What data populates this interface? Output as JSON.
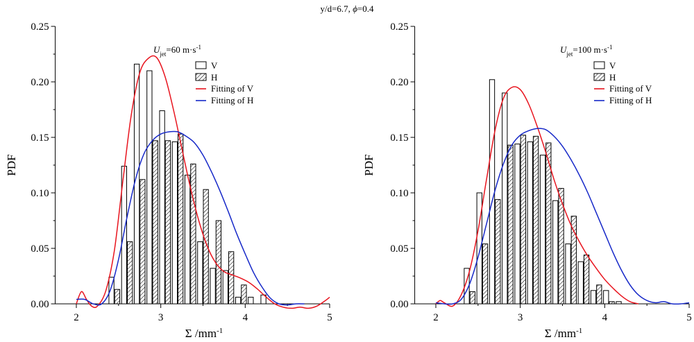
{
  "figure": {
    "suptitle_main": "y/d=6.7, ",
    "suptitle_phi": "ϕ",
    "suptitle_rest": "=0.4"
  },
  "chart_data": [
    {
      "type": "bar",
      "annotation_u": "U",
      "annotation_sub": "jet",
      "annotation_value": "=60 m·s",
      "annotation_sup": "-1",
      "ylabel": "PDF",
      "xlabel_main": "Σ /mm",
      "xlabel_sup": "-1",
      "xlim": [
        1.75,
        5
      ],
      "ylim": [
        0,
        0.25
      ],
      "xticks": [
        "2",
        "3",
        "4",
        "5"
      ],
      "yticks": [
        "0.00",
        "0.05",
        "0.10",
        "0.15",
        "0.20",
        "0.25"
      ],
      "legend": [
        "V",
        "H",
        "Fitting of V",
        "Fitting of H"
      ],
      "colors": {
        "fit_v": "#e8141e",
        "fit_h": "#1628c8"
      },
      "x": [
        2.45,
        2.6,
        2.75,
        2.9,
        3.05,
        3.2,
        3.35,
        3.5,
        3.65,
        3.8,
        3.95,
        4.1,
        4.25,
        4.4
      ],
      "series": [
        {
          "name": "V",
          "values": [
            0.024,
            0.124,
            0.216,
            0.21,
            0.174,
            0.146,
            0.116,
            0.056,
            0.032,
            0.03,
            0.006,
            0.006,
            0.008,
            0.0
          ]
        },
        {
          "name": "H",
          "values": [
            0.013,
            0.056,
            0.112,
            0.147,
            0.147,
            0.153,
            0.126,
            0.103,
            0.075,
            0.047,
            0.017,
            0.0,
            0.0,
            0.0
          ]
        }
      ],
      "fit_v": {
        "name": "Fitting of V",
        "x": [
          2.0,
          2.06,
          2.12,
          2.18,
          2.25,
          2.35,
          2.45,
          2.55,
          2.65,
          2.75,
          2.85,
          2.95,
          3.05,
          3.15,
          3.25,
          3.35,
          3.45,
          3.55,
          3.65,
          3.75,
          3.85,
          3.95,
          4.05,
          4.15,
          4.25,
          4.35,
          4.45,
          4.55,
          4.65,
          4.75,
          4.85,
          4.95,
          5.0
        ],
        "y": [
          0.0,
          0.011,
          0.004,
          -0.002,
          -0.002,
          0.012,
          0.048,
          0.11,
          0.17,
          0.208,
          0.221,
          0.222,
          0.205,
          0.175,
          0.14,
          0.105,
          0.075,
          0.052,
          0.037,
          0.029,
          0.026,
          0.023,
          0.019,
          0.013,
          0.006,
          0.0,
          -0.003,
          -0.004,
          -0.003,
          -0.004,
          -0.002,
          0.003,
          0.006
        ]
      },
      "fit_h": {
        "name": "Fitting of H",
        "x": [
          2.0,
          2.1,
          2.2,
          2.3,
          2.4,
          2.5,
          2.6,
          2.7,
          2.8,
          2.9,
          3.0,
          3.1,
          3.2,
          3.3,
          3.4,
          3.5,
          3.6,
          3.7,
          3.8,
          3.9,
          4.0,
          4.1,
          4.2,
          4.3,
          4.4,
          4.5,
          4.6,
          4.7
        ],
        "y": [
          0.004,
          0.004,
          0.0,
          0.0,
          0.012,
          0.04,
          0.078,
          0.112,
          0.135,
          0.147,
          0.153,
          0.155,
          0.155,
          0.151,
          0.145,
          0.134,
          0.119,
          0.102,
          0.083,
          0.063,
          0.045,
          0.028,
          0.015,
          0.005,
          0.0,
          -0.001,
          0.0,
          0.0
        ]
      }
    },
    {
      "type": "bar",
      "annotation_u": "U",
      "annotation_sub": "jet",
      "annotation_value": "=100 m·s",
      "annotation_sup": "-1",
      "ylabel": "PDF",
      "xlabel_main": "Σ /mm",
      "xlabel_sup": "-1",
      "xlim": [
        1.75,
        5
      ],
      "ylim": [
        0,
        0.25
      ],
      "xticks": [
        "2",
        "3",
        "4",
        "5"
      ],
      "yticks": [
        "0.00",
        "0.05",
        "0.10",
        "0.15",
        "0.20",
        "0.25"
      ],
      "legend": [
        "V",
        "H",
        "Fitting of V",
        "Fitting of H"
      ],
      "colors": {
        "fit_v": "#e8141e",
        "fit_h": "#1628c8"
      },
      "x": [
        2.4,
        2.55,
        2.7,
        2.85,
        3.0,
        3.15,
        3.3,
        3.45,
        3.6,
        3.75,
        3.9,
        4.05,
        4.2,
        4.35,
        4.5,
        4.65
      ],
      "series": [
        {
          "name": "V",
          "values": [
            0.032,
            0.1,
            0.202,
            0.19,
            0.144,
            0.146,
            0.134,
            0.093,
            0.054,
            0.038,
            0.012,
            0.012,
            0.002,
            0.0,
            0.0,
            0.0
          ]
        },
        {
          "name": "H",
          "values": [
            0.011,
            0.054,
            0.094,
            0.143,
            0.152,
            0.151,
            0.145,
            0.104,
            0.079,
            0.044,
            0.017,
            0.002,
            0.0,
            0.0,
            0.0,
            0.0
          ]
        }
      ],
      "fit_v": {
        "name": "Fitting of V",
        "x": [
          2.0,
          2.05,
          2.1,
          2.2,
          2.3,
          2.4,
          2.5,
          2.6,
          2.7,
          2.8,
          2.9,
          3.0,
          3.1,
          3.2,
          3.3,
          3.4,
          3.5,
          3.6,
          3.7,
          3.8,
          3.9,
          4.0,
          4.1,
          4.2,
          4.3,
          4.4
        ],
        "y": [
          0.0,
          0.003,
          0.001,
          -0.002,
          0.008,
          0.03,
          0.066,
          0.112,
          0.156,
          0.185,
          0.195,
          0.193,
          0.18,
          0.16,
          0.137,
          0.112,
          0.09,
          0.071,
          0.056,
          0.043,
          0.032,
          0.022,
          0.014,
          0.007,
          0.002,
          0.0
        ]
      },
      "fit_h": {
        "name": "Fitting of H",
        "x": [
          2.0,
          2.1,
          2.2,
          2.3,
          2.4,
          2.5,
          2.6,
          2.7,
          2.8,
          2.9,
          3.0,
          3.1,
          3.2,
          3.3,
          3.4,
          3.5,
          3.6,
          3.7,
          3.8,
          3.9,
          4.0,
          4.1,
          4.2,
          4.3,
          4.4,
          4.5,
          4.6,
          4.7,
          4.8,
          4.9,
          5.0
        ],
        "y": [
          0.001,
          0.0,
          0.0,
          0.004,
          0.018,
          0.042,
          0.072,
          0.102,
          0.126,
          0.143,
          0.152,
          0.156,
          0.158,
          0.157,
          0.151,
          0.142,
          0.13,
          0.116,
          0.1,
          0.082,
          0.064,
          0.046,
          0.03,
          0.017,
          0.008,
          0.003,
          0.001,
          0.002,
          0.0,
          0.0,
          0.001
        ]
      }
    }
  ]
}
